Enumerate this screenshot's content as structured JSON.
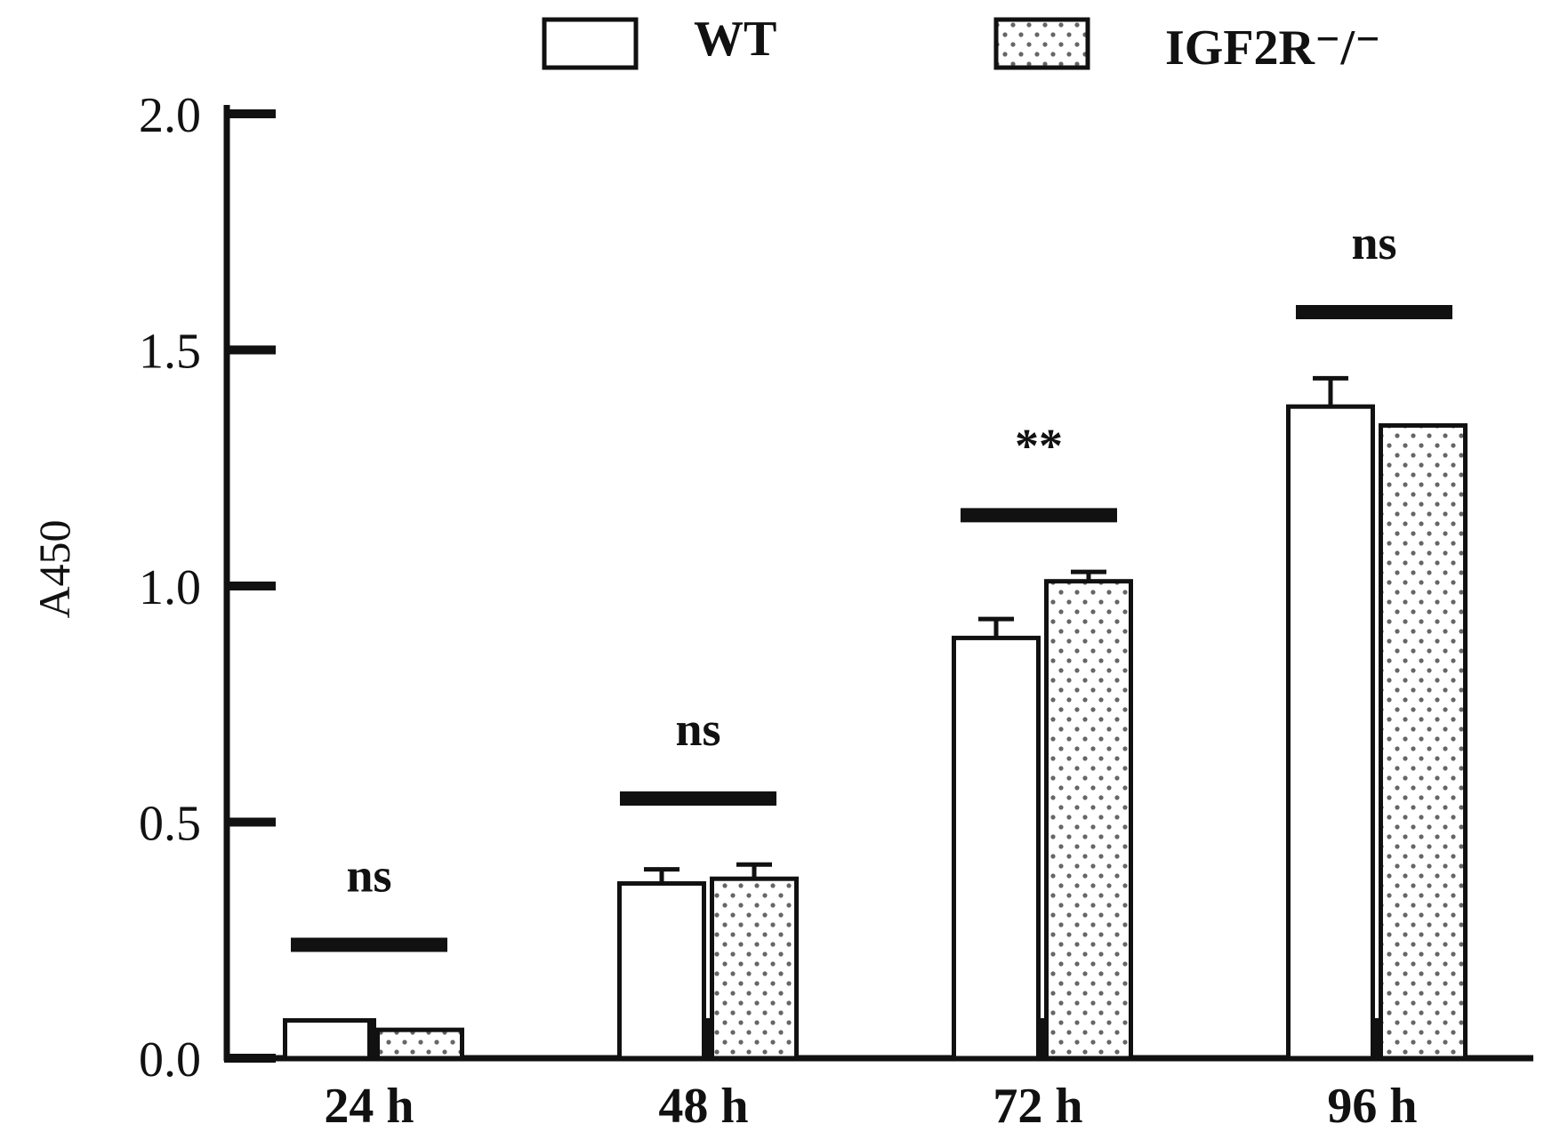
{
  "chart_data": {
    "type": "bar",
    "ylabel": "A450",
    "xlabel": "",
    "ylim": [
      0,
      2.0
    ],
    "yticks": [
      "0.0",
      "0.5",
      "1.0",
      "1.5",
      "2.0"
    ],
    "categories": [
      "24 h",
      "48 h",
      "72 h",
      "96 h"
    ],
    "series": [
      {
        "name": "WT",
        "values": [
          0.08,
          0.37,
          0.89,
          1.38
        ],
        "errors": [
          0.0,
          0.03,
          0.04,
          0.06
        ],
        "pattern": "none"
      },
      {
        "name": "IGF2R⁻/⁻",
        "values": [
          0.06,
          0.38,
          1.01,
          1.34
        ],
        "errors": [
          0.0,
          0.03,
          0.02,
          0.0
        ],
        "pattern": "dots"
      }
    ],
    "significance": [
      {
        "category": "24 h",
        "label": "ns",
        "bar_level": 0.24
      },
      {
        "category": "48 h",
        "label": "ns",
        "bar_level": 0.55
      },
      {
        "category": "72 h",
        "label": "**",
        "bar_level": 1.15
      },
      {
        "category": "96 h",
        "label": "ns",
        "bar_level": 1.58
      }
    ],
    "legend_position": "top",
    "grid": false
  },
  "colors": {
    "ink": "#111111",
    "bar_fill": "#ffffff",
    "dot": "#555555"
  }
}
